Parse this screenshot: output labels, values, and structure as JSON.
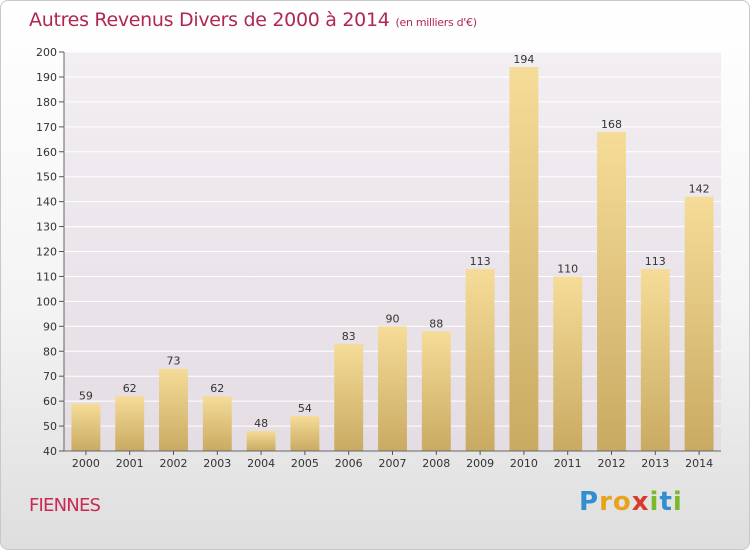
{
  "header": {
    "title": "Autres Revenus Divers de 2000 à 2014",
    "subtitle": "(en milliers d'€)"
  },
  "footer": {
    "location": "FIENNES",
    "logo": {
      "letters": [
        {
          "char": "P",
          "color": "#2f8fd0"
        },
        {
          "char": "r",
          "color": "#e8a21c"
        },
        {
          "char": "o",
          "color": "#e8a21c"
        },
        {
          "char": "x",
          "color": "#d93a2b"
        },
        {
          "char": "i",
          "color": "#7ab82c"
        },
        {
          "char": "t",
          "color": "#2f8fd0"
        },
        {
          "char": "i",
          "color": "#7ab82c"
        }
      ]
    }
  },
  "chart_data": {
    "type": "bar",
    "title": "Autres Revenus Divers de 2000 à 2014",
    "subtitle": "(en milliers d'€)",
    "categories": [
      "2000",
      "2001",
      "2002",
      "2003",
      "2004",
      "2005",
      "2006",
      "2007",
      "2008",
      "2009",
      "2010",
      "2011",
      "2012",
      "2013",
      "2014"
    ],
    "values": [
      59,
      62,
      73,
      62,
      48,
      54,
      83,
      90,
      88,
      113,
      194,
      110,
      168,
      113,
      142
    ],
    "ylim": [
      40,
      200
    ],
    "yticks": [
      40,
      50,
      60,
      70,
      80,
      90,
      100,
      110,
      120,
      130,
      140,
      150,
      160,
      170,
      180,
      190,
      200
    ],
    "grid": true,
    "legend": "none",
    "bar_color_top": "#f5dc98",
    "bar_color_bottom": "#c9aa62",
    "plot_background": "#ece6ec"
  }
}
